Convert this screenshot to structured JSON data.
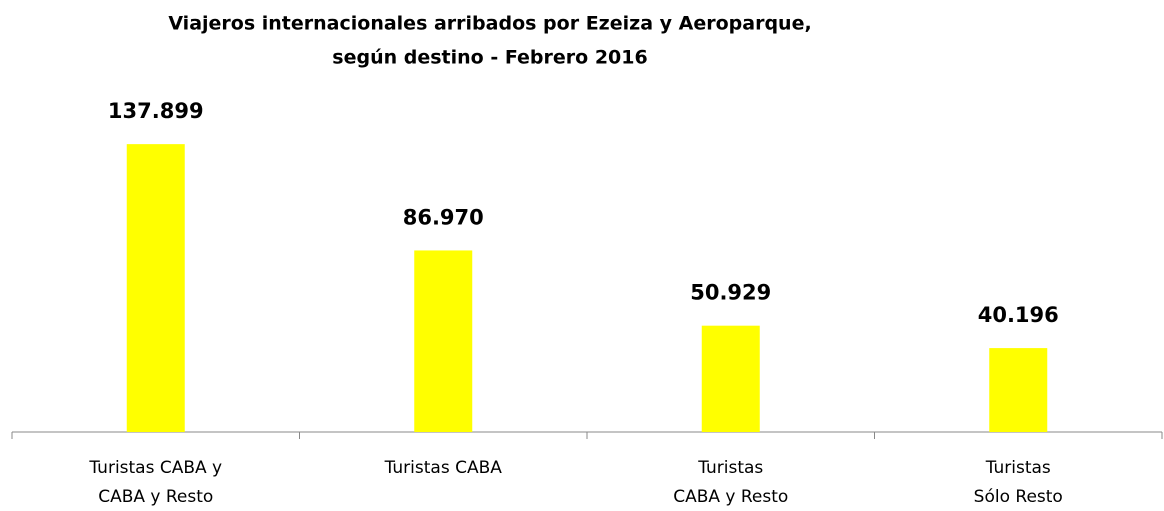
{
  "chart_data": {
    "type": "bar",
    "title": [
      "Viajeros internacionales arribados por Ezeiza y Aeroparque,",
      "según destino - Febrero 2016"
    ],
    "categories": [
      [
        "Turistas CABA y",
        "CABA y Resto"
      ],
      [
        "Turistas CABA"
      ],
      [
        "Turistas",
        "CABA y Resto"
      ],
      [
        "Turistas",
        "Sólo Resto"
      ]
    ],
    "values": [
      137899,
      86970,
      50929,
      40196
    ],
    "value_labels": [
      "137.899",
      "86.970",
      "50.929",
      "40.196"
    ],
    "color": "#ffff00",
    "ylim": [
      0,
      160000
    ]
  }
}
